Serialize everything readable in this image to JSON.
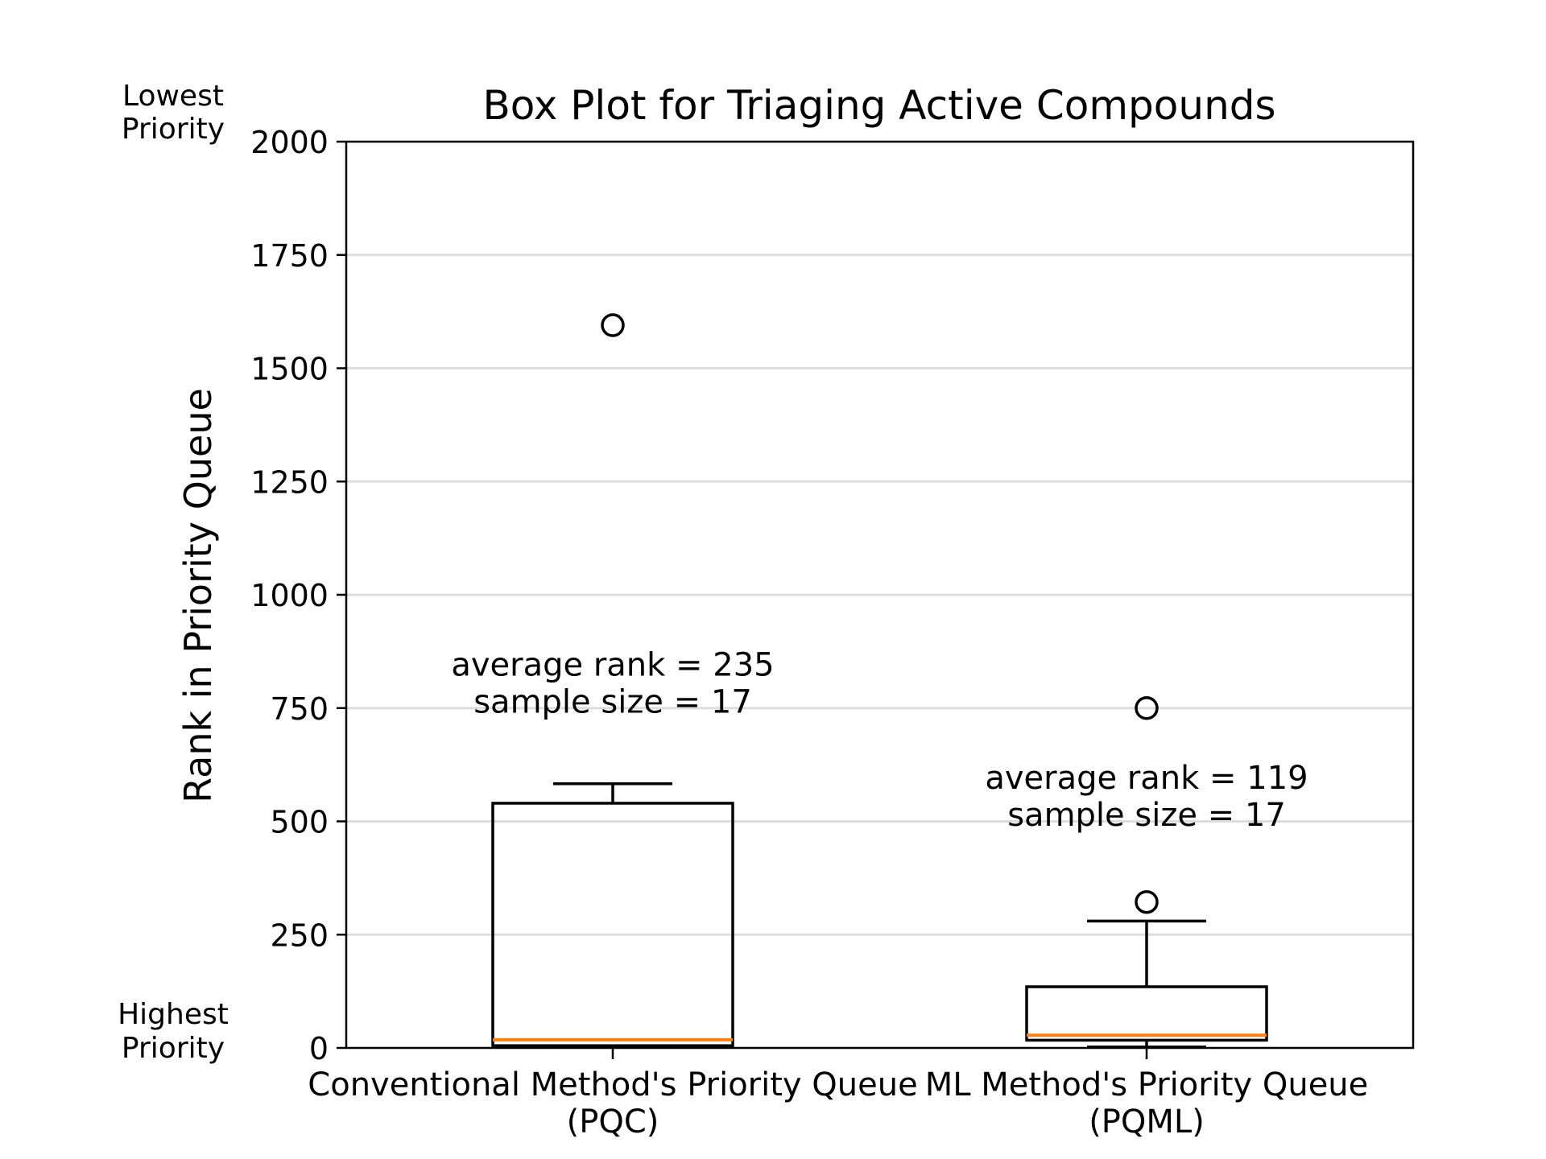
{
  "chart_data": {
    "type": "box",
    "title": "Box Plot for Triaging Active Compounds",
    "ylabel": "Rank in Priority Queue",
    "ylim": [
      0,
      2000
    ],
    "yticks": [
      0,
      250,
      500,
      750,
      1000,
      1250,
      1500,
      1750,
      2000
    ],
    "grid": "horizontal",
    "y_end_labels": {
      "top": [
        "Lowest",
        "Priority"
      ],
      "bottom": [
        "Highest",
        "Priority"
      ]
    },
    "categories": [
      {
        "line1": "Conventional Method's Priority Queue",
        "line2": "(PQC)"
      },
      {
        "line1": "ML Method's Priority Queue",
        "line2": "(PQML)"
      }
    ],
    "boxes": [
      {
        "whisker_low": 2,
        "q1": 5,
        "median": 18,
        "q3": 540,
        "whisker_high": 583,
        "fliers": [
          1595
        ],
        "annotation": [
          "average rank = 235",
          "sample size = 17"
        ],
        "annotation_at": 740
      },
      {
        "whisker_low": 2,
        "q1": 17,
        "median": 28,
        "q3": 135,
        "whisker_high": 280,
        "fliers": [
          750,
          322
        ],
        "annotation": [
          "average rank = 119",
          "sample size = 17"
        ],
        "annotation_at": 490
      }
    ],
    "colors": {
      "median": "#ff7f0e",
      "grid": "#dddddd",
      "box": "#000000"
    }
  }
}
